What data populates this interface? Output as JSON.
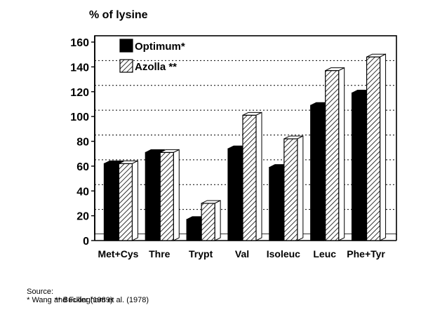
{
  "chart_data": {
    "type": "bar",
    "title": "",
    "ylabel": "% of lysine",
    "xlabel": "",
    "ylim": [
      0,
      160
    ],
    "yticks": [
      0,
      20,
      40,
      60,
      80,
      100,
      120,
      140,
      160
    ],
    "grid": true,
    "legend_position": "top-left",
    "categories": [
      "Met+Cys",
      "Thre",
      "Trypt",
      "Val",
      "Isoleuc",
      "Leuc",
      "Phe+Tyr"
    ],
    "series": [
      {
        "name": "Optimum*",
        "fill": "solid",
        "color": "#000000",
        "values": [
          62,
          71,
          17,
          74,
          59,
          109,
          119
        ]
      },
      {
        "name": "Azolla **",
        "fill": "hatched",
        "color": "#000000",
        "values": [
          62,
          71,
          30,
          101,
          82,
          137,
          148
        ]
      }
    ]
  },
  "source": {
    "label": "Source:",
    "lines": [
      "* Wang and Fuller (1989)",
      "** Buckingham et al. (1978)"
    ]
  }
}
